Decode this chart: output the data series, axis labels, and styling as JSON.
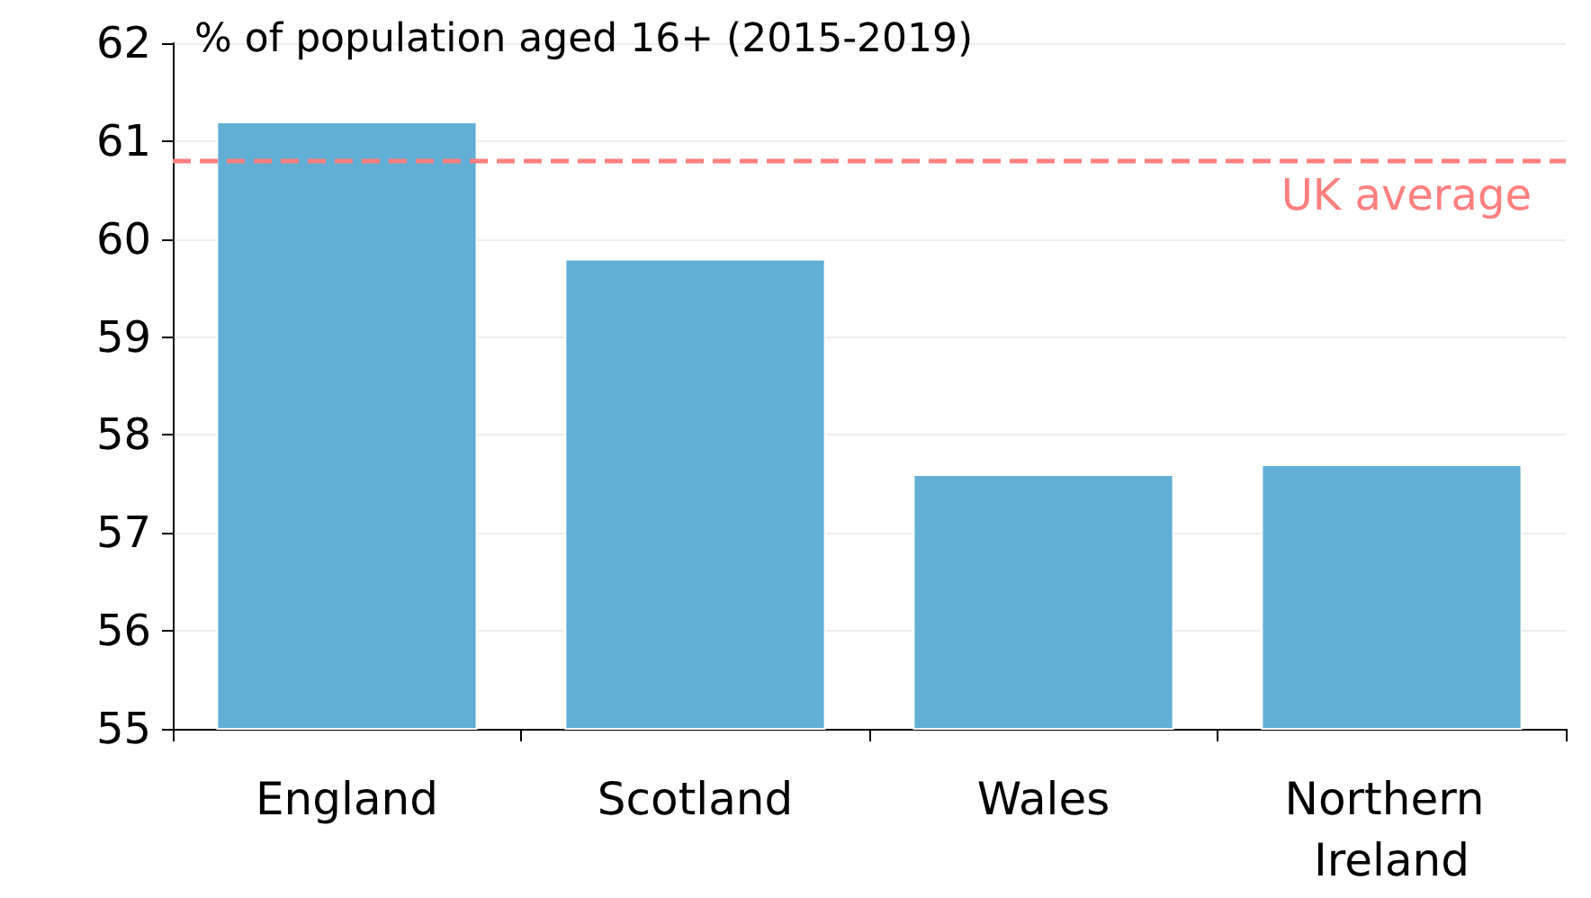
{
  "chart_data": {
    "type": "bar",
    "title": "% of population aged 16+ (2015-2019)",
    "categories": [
      "England",
      "Scotland",
      "Wales",
      "Northern Ireland"
    ],
    "values": [
      61.2,
      59.8,
      57.6,
      57.7
    ],
    "color": "#62afd6",
    "ylim": [
      55,
      62
    ],
    "yticks": [
      55,
      56,
      57,
      58,
      59,
      60,
      61,
      62
    ],
    "grid": "y",
    "ref_lines": [
      {
        "axis": "y",
        "value": 60.8,
        "label": "UK average",
        "color": "#ff7f7f",
        "line_style": "dashed"
      }
    ]
  }
}
